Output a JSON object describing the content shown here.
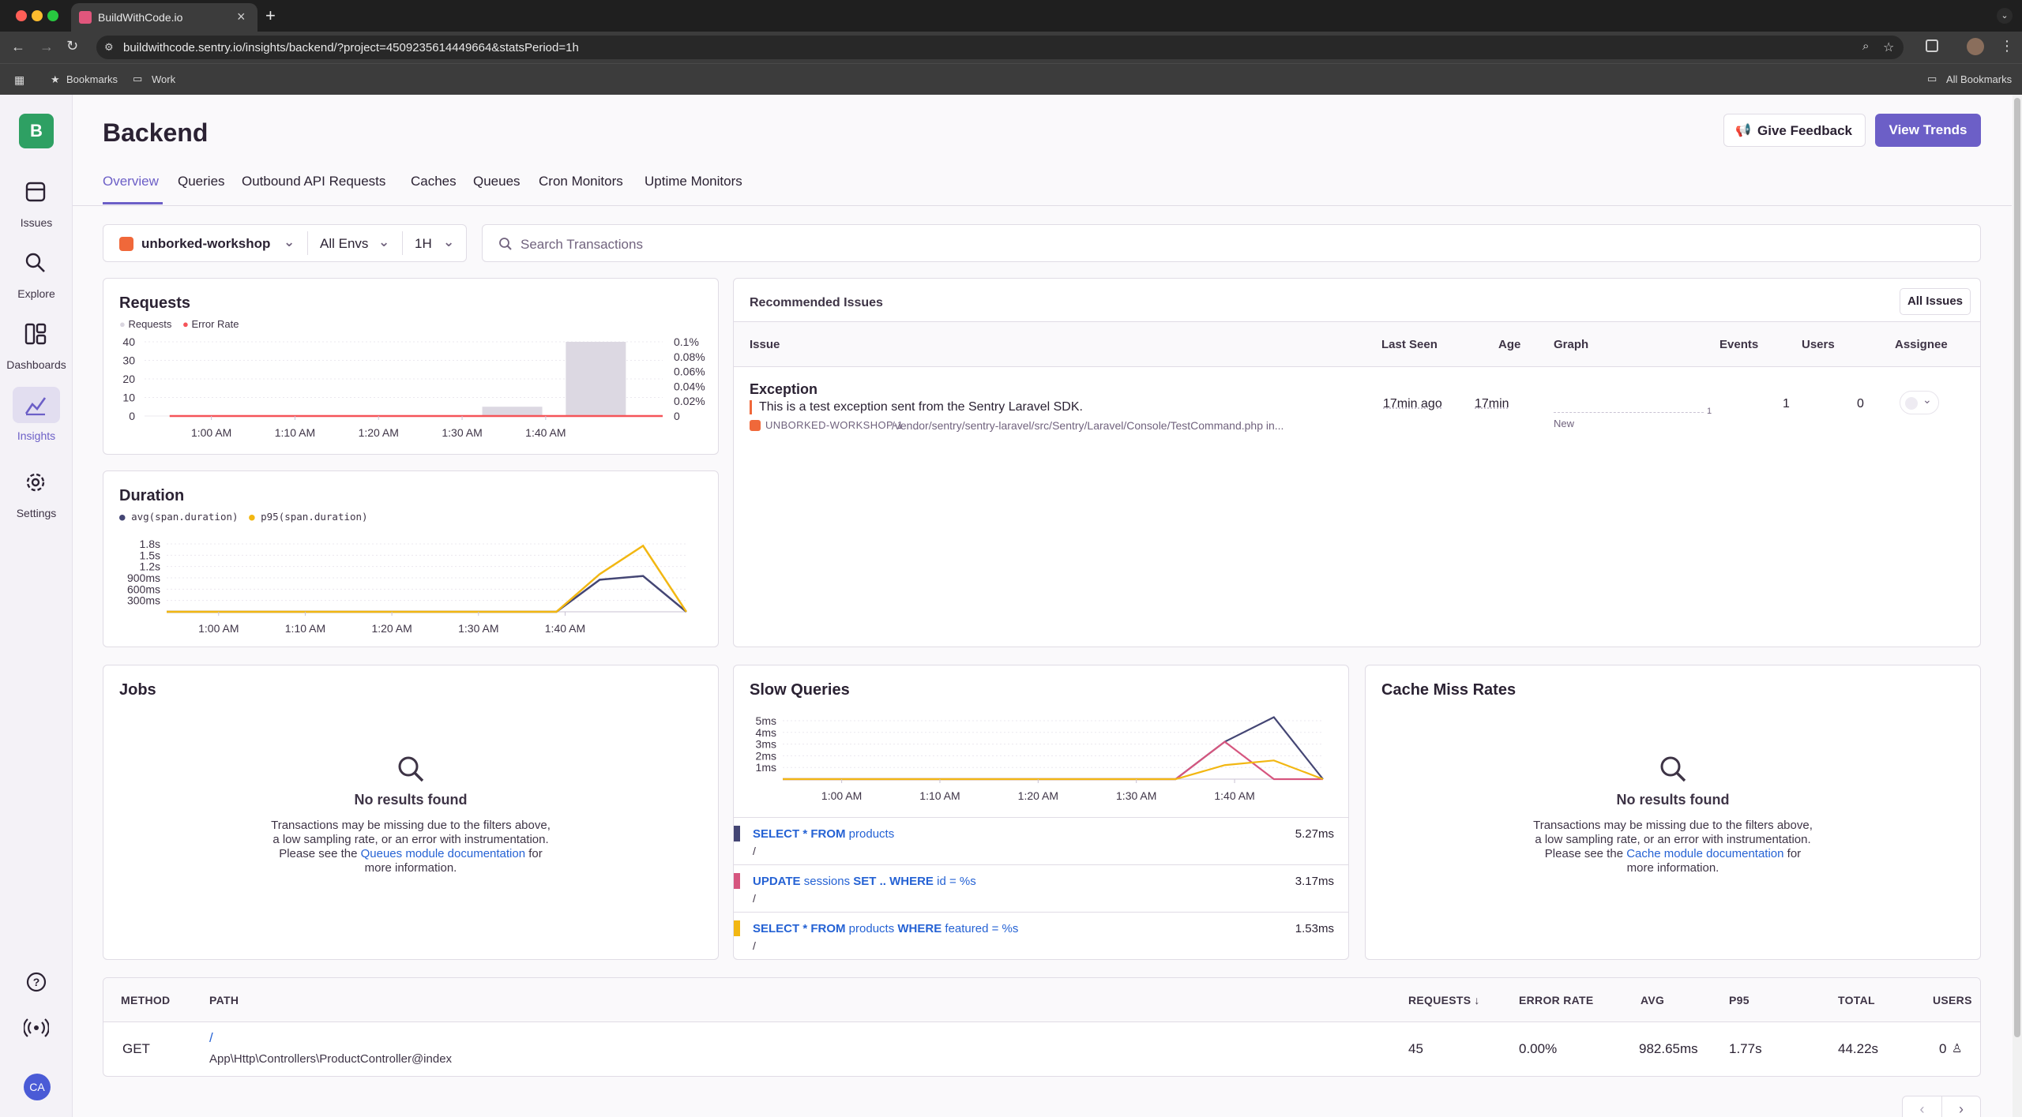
{
  "browser": {
    "tab_title": "BuildWithCode.io",
    "new_tab": "+",
    "url": "buildwithcode.sentry.io/insights/backend/?project=4509235614449664&statsPeriod=1h",
    "bookmarks": [
      "Bookmarks",
      "Work"
    ],
    "all_bookmarks": "All Bookmarks"
  },
  "org_avatar": "B",
  "sidebar": {
    "items": [
      {
        "label": "Issues",
        "icon": "issues-icon"
      },
      {
        "label": "Explore",
        "icon": "search-icon"
      },
      {
        "label": "Dashboards",
        "icon": "dashboard-icon"
      },
      {
        "label": "Insights",
        "icon": "insights-icon"
      },
      {
        "label": "Settings",
        "icon": "gear-icon"
      }
    ],
    "user_initials": "CA"
  },
  "header": {
    "title": "Backend",
    "feedback_button": "Give Feedback",
    "trends_button": "View Trends"
  },
  "tabs": [
    "Overview",
    "Queries",
    "Outbound API Requests",
    "Caches",
    "Queues",
    "Cron Monitors",
    "Uptime Monitors"
  ],
  "filters": {
    "project": "unborked-workshop",
    "env": "All Envs",
    "period": "1H",
    "search_placeholder": "Search Transactions"
  },
  "colors": {
    "accent": "#6c5fc7",
    "error": "#f55459",
    "duration_avg": "#444674",
    "duration_p95": "#f2b712",
    "query2": "#d6567f"
  },
  "requests_chart": {
    "title": "Requests",
    "legend": [
      "Requests",
      "Error Rate"
    ],
    "y_ticks": [
      "40",
      "30",
      "20",
      "10",
      "0"
    ],
    "y2_ticks": [
      "0.1%",
      "0.08%",
      "0.06%",
      "0.04%",
      "0.02%",
      "0"
    ],
    "x_ticks": [
      "1:00 AM",
      "1:10 AM",
      "1:20 AM",
      "1:30 AM",
      "1:40 AM"
    ]
  },
  "duration_chart": {
    "title": "Duration",
    "legend": [
      "avg(span.duration)",
      "p95(span.duration)"
    ],
    "y_ticks": [
      "1.8s",
      "1.5s",
      "1.2s",
      "900ms",
      "600ms",
      "300ms"
    ],
    "x_ticks": [
      "1:00 AM",
      "1:10 AM",
      "1:20 AM",
      "1:30 AM",
      "1:40 AM"
    ]
  },
  "chart_data": [
    {
      "type": "bar",
      "title": "Requests",
      "x": [
        "1:00 AM",
        "1:10 AM",
        "1:20 AM",
        "1:30 AM",
        "1:40 AM"
      ],
      "x_minutes": [
        -8,
        0,
        10,
        20,
        30,
        40,
        50
      ],
      "series": [
        {
          "name": "Requests",
          "points": [
            [
              36,
              5
            ],
            [
              46,
              40
            ]
          ]
        },
        {
          "name": "Error Rate",
          "type": "line",
          "points": [
            [
              -5,
              0
            ],
            [
              54,
              0
            ]
          ]
        }
      ],
      "ylim": [
        0,
        40
      ],
      "y2lim": [
        0,
        0.1
      ]
    },
    {
      "type": "line",
      "title": "Duration",
      "x": [
        "1:00 AM",
        "1:10 AM",
        "1:20 AM",
        "1:30 AM",
        "1:40 AM"
      ],
      "series": [
        {
          "name": "avg(span.duration)",
          "points": [
            [
              -6,
              0
            ],
            [
              39,
              0
            ],
            [
              44,
              0.85
            ],
            [
              49,
              0.95
            ],
            [
              54,
              0
            ]
          ]
        },
        {
          "name": "p95(span.duration)",
          "points": [
            [
              -6,
              0
            ],
            [
              39,
              0
            ],
            [
              44,
              1.0
            ],
            [
              49,
              1.75
            ],
            [
              54,
              0
            ]
          ]
        }
      ],
      "ylim": [
        0,
        1.8
      ]
    },
    {
      "type": "line",
      "title": "Slow Queries",
      "x": [
        "1:00 AM",
        "1:10 AM",
        "1:20 AM",
        "1:30 AM",
        "1:40 AM"
      ],
      "series": [
        {
          "points": [
            [
              -6,
              0
            ],
            [
              34,
              0
            ],
            [
              39,
              3.2
            ],
            [
              44,
              5.3
            ],
            [
              49,
              0
            ]
          ]
        },
        {
          "points": [
            [
              -6,
              0
            ],
            [
              34,
              0
            ],
            [
              39,
              3.2
            ],
            [
              44,
              0
            ],
            [
              49,
              0
            ]
          ]
        },
        {
          "points": [
            [
              -6,
              0
            ],
            [
              34,
              0
            ],
            [
              39,
              1.2
            ],
            [
              44,
              1.6
            ],
            [
              49,
              0
            ]
          ]
        }
      ],
      "ylim": [
        0,
        5
      ]
    }
  ],
  "issues_panel": {
    "title": "Recommended Issues",
    "all_issues_button": "All Issues",
    "columns": [
      "Issue",
      "Last Seen",
      "Age",
      "Graph",
      "Events",
      "Users",
      "Assignee"
    ],
    "issue": {
      "type": "Exception",
      "message": "This is a test exception sent from the Sentry Laravel SDK.",
      "short_id": "UNBORKED-WORKSHOP-1",
      "culprit": "/vendor/sentry/sentry-laravel/src/Sentry/Laravel/Console/TestCommand.php in...",
      "last_seen": "17min ago",
      "age": "17min",
      "graph_badge": "New",
      "graph_max": "1",
      "events": "1",
      "users": "0"
    }
  },
  "jobs_panel": {
    "title": "Jobs",
    "empty_title": "No results found",
    "line1": "Transactions may be missing due to the filters above,",
    "line2": "a low sampling rate, or an error with instrumentation.",
    "line3_pre": "Please see the ",
    "link": "Queues module documentation",
    "line3_post": " for",
    "line4": "more information."
  },
  "slow_queries_panel": {
    "title": "Slow Queries",
    "y_ticks": [
      "5ms",
      "4ms",
      "3ms",
      "2ms",
      "1ms"
    ],
    "x_ticks": [
      "1:00 AM",
      "1:10 AM",
      "1:20 AM",
      "1:30 AM",
      "1:40 AM"
    ],
    "rows": [
      {
        "kw1": "SELECT * FROM",
        "t1": " products",
        "kw2": "",
        "t2": "",
        "path": "/",
        "value": "5.27ms"
      },
      {
        "kw1": "UPDATE",
        "t1": " sessions ",
        "kw2": "SET .. WHERE",
        "t2": " id = %s",
        "path": "/",
        "value": "3.17ms"
      },
      {
        "kw1": "SELECT * FROM",
        "t1": " products ",
        "kw2": "WHERE",
        "t2": " featured = %s",
        "path": "/",
        "value": "1.53ms"
      }
    ]
  },
  "cache_panel": {
    "title": "Cache Miss Rates",
    "empty_title": "No results found",
    "line1": "Transactions may be missing due to the filters above,",
    "line2": "a low sampling rate, or an error with instrumentation.",
    "line3_pre": "Please see the ",
    "link": "Cache module documentation",
    "line3_post": " for",
    "line4": "more information."
  },
  "transactions_table": {
    "columns": [
      "METHOD",
      "PATH",
      "REQUESTS",
      "ERROR RATE",
      "AVG",
      "P95",
      "TOTAL",
      "USERS"
    ],
    "rows": [
      {
        "method": "GET",
        "path": "/",
        "handler": "App\\Http\\Controllers\\ProductController@index",
        "requests": "45",
        "error_rate": "0.00%",
        "avg": "982.65ms",
        "p95": "1.77s",
        "total": "44.22s",
        "users": "0"
      }
    ]
  }
}
